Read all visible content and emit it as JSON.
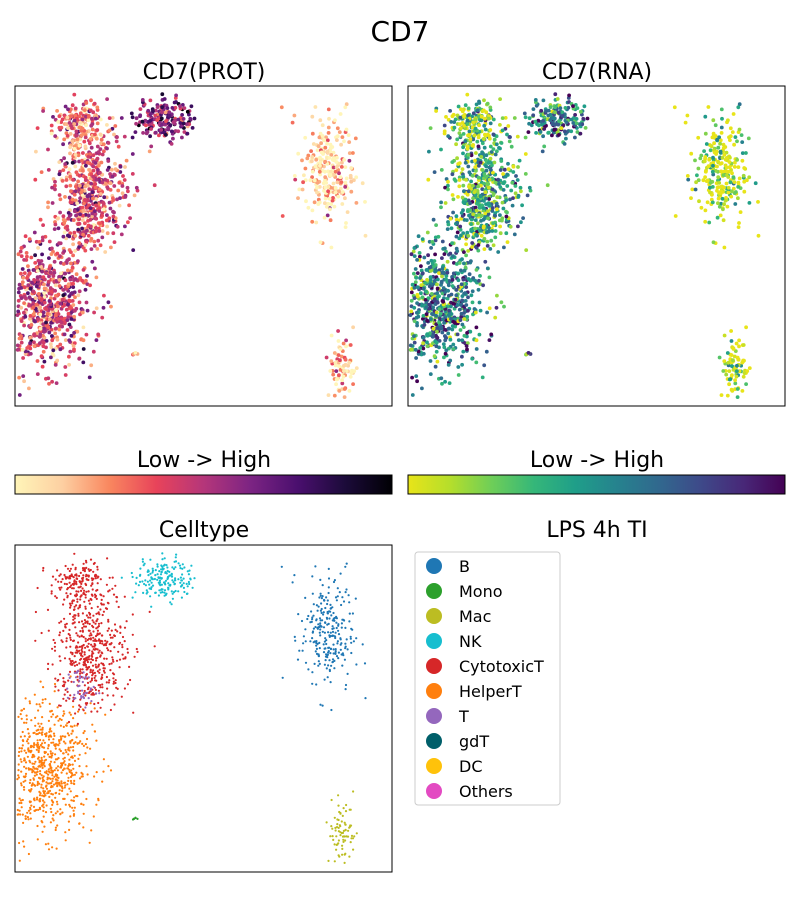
{
  "figure": {
    "title": "CD7"
  },
  "chart_data": [
    {
      "id": "prot",
      "type": "scatter",
      "title": "CD7(PROT)",
      "colorbar_label": "Low  ->  High",
      "colormap": [
        "#fff5b8",
        "#fdd0a2",
        "#f9875f",
        "#e8435a",
        "#b5367a",
        "#7c2483",
        "#4a0f6e",
        "#1c0b3a",
        "#000004"
      ],
      "xlim": [
        -7,
        14
      ],
      "ylim": [
        -8,
        9
      ],
      "grid": false,
      "point_color_scale": "value 0-1 mapped to colormap"
    },
    {
      "id": "rna",
      "type": "scatter",
      "title": "CD7(RNA)",
      "colorbar_label": "Low  ->  High",
      "colormap": [
        "#e8e419",
        "#b5de2b",
        "#6ece58",
        "#35b779",
        "#1f9e89",
        "#26828e",
        "#31688e",
        "#3e4989",
        "#482878",
        "#440154"
      ],
      "xlim": [
        -7,
        14
      ],
      "ylim": [
        -8,
        9
      ],
      "grid": false
    },
    {
      "id": "celltype",
      "type": "scatter",
      "title": "Celltype",
      "xlim": [
        -7,
        14
      ],
      "ylim": [
        -8,
        9
      ],
      "grid": false,
      "legend_title": "LPS 4h TI",
      "legend_position": "right",
      "categories": [
        {
          "name": "B",
          "color": "#1f77b4"
        },
        {
          "name": "Mono",
          "color": "#2ca02c"
        },
        {
          "name": "Mac",
          "color": "#bcbd22"
        },
        {
          "name": "NK",
          "color": "#17becf"
        },
        {
          "name": "CytotoxicT",
          "color": "#d62728"
        },
        {
          "name": "HelperT",
          "color": "#ff7f0e"
        },
        {
          "name": "T",
          "color": "#9467bd"
        },
        {
          "name": "gdT",
          "color": "#005f6a"
        },
        {
          "name": "DC",
          "color": "#ffc20a"
        },
        {
          "name": "Others",
          "color": "#e34ac2"
        }
      ]
    }
  ],
  "clusters": [
    {
      "name": "HelperT",
      "cx": -5.2,
      "cy": -2.6,
      "sx": 1.3,
      "sy": 1.6,
      "n": 700,
      "prot": 0.42,
      "rna": 0.55
    },
    {
      "name": "CytotoxicT",
      "cx": -2.8,
      "cy": 3.6,
      "sx": 1.0,
      "sy": 1.6,
      "n": 500,
      "prot": 0.38,
      "rna": 0.35
    },
    {
      "name": "CytotoxicT",
      "cx": -3.5,
      "cy": 7.0,
      "sx": 0.8,
      "sy": 0.6,
      "n": 160,
      "prot": 0.3,
      "rna": 0.2
    },
    {
      "name": "NK",
      "cx": 1.3,
      "cy": 7.2,
      "sx": 0.8,
      "sy": 0.55,
      "n": 180,
      "prot": 0.65,
      "rna": 0.62
    },
    {
      "name": "B",
      "cx": 10.4,
      "cy": 4.5,
      "sx": 0.75,
      "sy": 1.6,
      "n": 260,
      "prot": 0.08,
      "rna": 0.02
    },
    {
      "name": "Mac",
      "cx": 11.2,
      "cy": -6.0,
      "sx": 0.4,
      "sy": 0.8,
      "n": 80,
      "prot": 0.12,
      "rna": 0.05
    },
    {
      "name": "T",
      "cx": -3.3,
      "cy": 1.6,
      "sx": 0.4,
      "sy": 0.5,
      "n": 45,
      "prot": 0.4,
      "rna": 0.4
    },
    {
      "name": "Mono",
      "cx": -0.4,
      "cy": -5.2,
      "sx": 0.12,
      "sy": 0.08,
      "n": 6,
      "prot": 0.2,
      "rna": 0.3
    }
  ]
}
